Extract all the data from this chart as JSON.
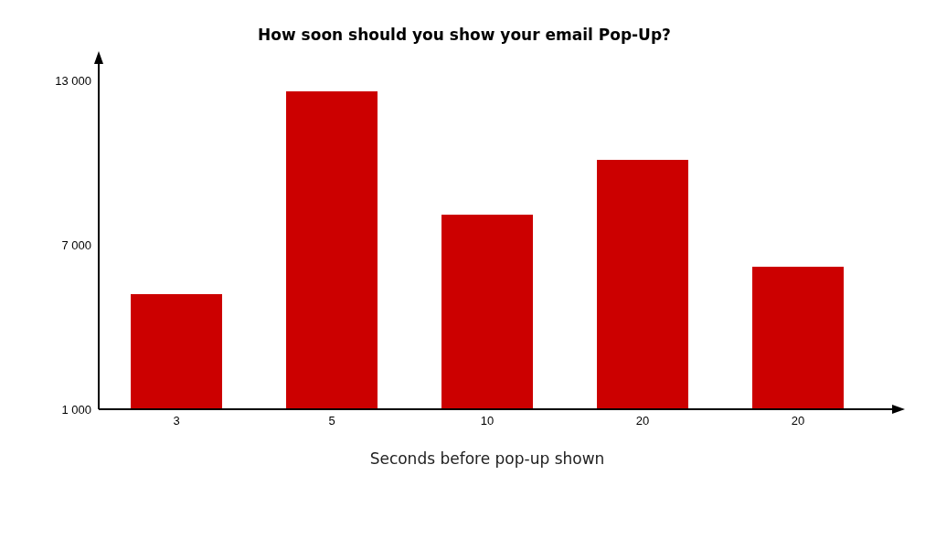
{
  "chart_data": {
    "type": "bar",
    "title": "How soon should you show your email Pop-Up?",
    "xlabel": "Seconds before pop-up shown",
    "categories": [
      "3",
      "5",
      "10",
      "20",
      "20"
    ],
    "values": [
      5200,
      12600,
      8100,
      10100,
      6200
    ],
    "color": "#cc0000",
    "ylim": [
      1000,
      13000
    ],
    "yticks": [
      {
        "value": 1000,
        "label": "1 000"
      },
      {
        "value": 7000,
        "label": "7 000"
      },
      {
        "value": 13000,
        "label": "13 000"
      }
    ],
    "grid": false,
    "legend": false
  }
}
